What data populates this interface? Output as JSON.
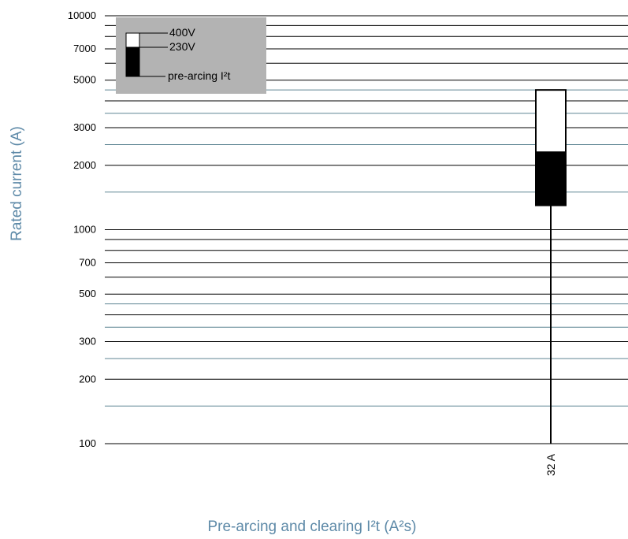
{
  "chart_data": {
    "type": "bar",
    "ylabel": "Rated current (A)",
    "xlabel": "Pre-arcing and clearing I²t (A²s)",
    "y_scale": "log",
    "ylim": [
      100,
      10000
    ],
    "y_tick_labels": [
      "10000",
      "7000",
      "5000",
      "3000",
      "2000",
      "1000",
      "700",
      "500",
      "300",
      "200",
      "100"
    ],
    "y_tick_values": [
      10000,
      7000,
      5000,
      3000,
      2000,
      1000,
      700,
      500,
      300,
      200,
      100
    ],
    "black_gridlines": [
      9000,
      8000,
      6000,
      4000,
      900,
      800,
      600,
      400
    ],
    "teal_gridlines": [
      4500,
      3500,
      2500,
      1500,
      450,
      350,
      250,
      150
    ],
    "categories": [
      "32 A"
    ],
    "series": [
      {
        "name": "400V",
        "color": "#ffffff",
        "from": [
          2300
        ],
        "to": [
          4500
        ]
      },
      {
        "name": "230V",
        "color": "#000000",
        "from": [
          1300
        ],
        "to": [
          2300
        ]
      },
      {
        "name": "pre-arcing I²t",
        "color": "#000000",
        "from": [
          100
        ],
        "to": [
          1300
        ]
      }
    ],
    "legend": {
      "position": "top-left",
      "entries": [
        "400V",
        "230V",
        "pre-arcing I²t"
      ],
      "background": "#b3b3b3"
    }
  }
}
